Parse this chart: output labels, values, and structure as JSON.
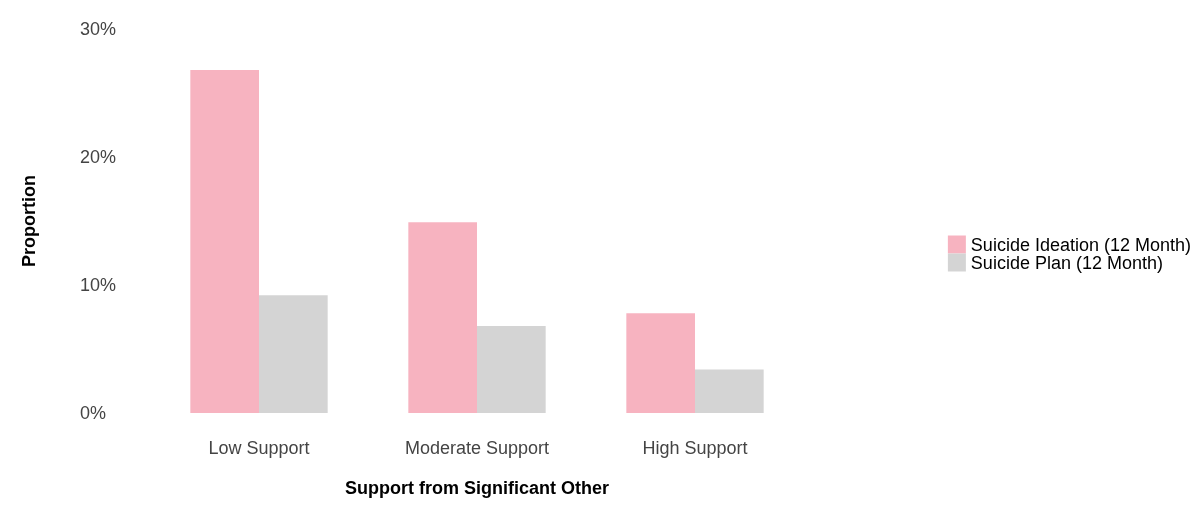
{
  "chart_data": {
    "type": "bar",
    "xlabel": "Support from Significant Other",
    "ylabel": "Proportion",
    "categories": [
      "Low Support",
      "Moderate Support",
      "High Support"
    ],
    "series": [
      {
        "name": "Suicide Ideation (12 Month)",
        "color": "#f7b3c0",
        "values": [
          26.8,
          14.9,
          7.8
        ]
      },
      {
        "name": "Suicide Plan (12 Month)",
        "color": "#d4d4d4",
        "values": [
          9.2,
          6.8,
          3.4
        ]
      }
    ],
    "ylim": [
      0,
      30
    ],
    "yticks": [
      {
        "value": 0,
        "label": "0%"
      },
      {
        "value": 10,
        "label": "10%"
      },
      {
        "value": 20,
        "label": "20%"
      },
      {
        "value": 30,
        "label": "30%"
      }
    ],
    "grid": false,
    "legend": "right"
  }
}
